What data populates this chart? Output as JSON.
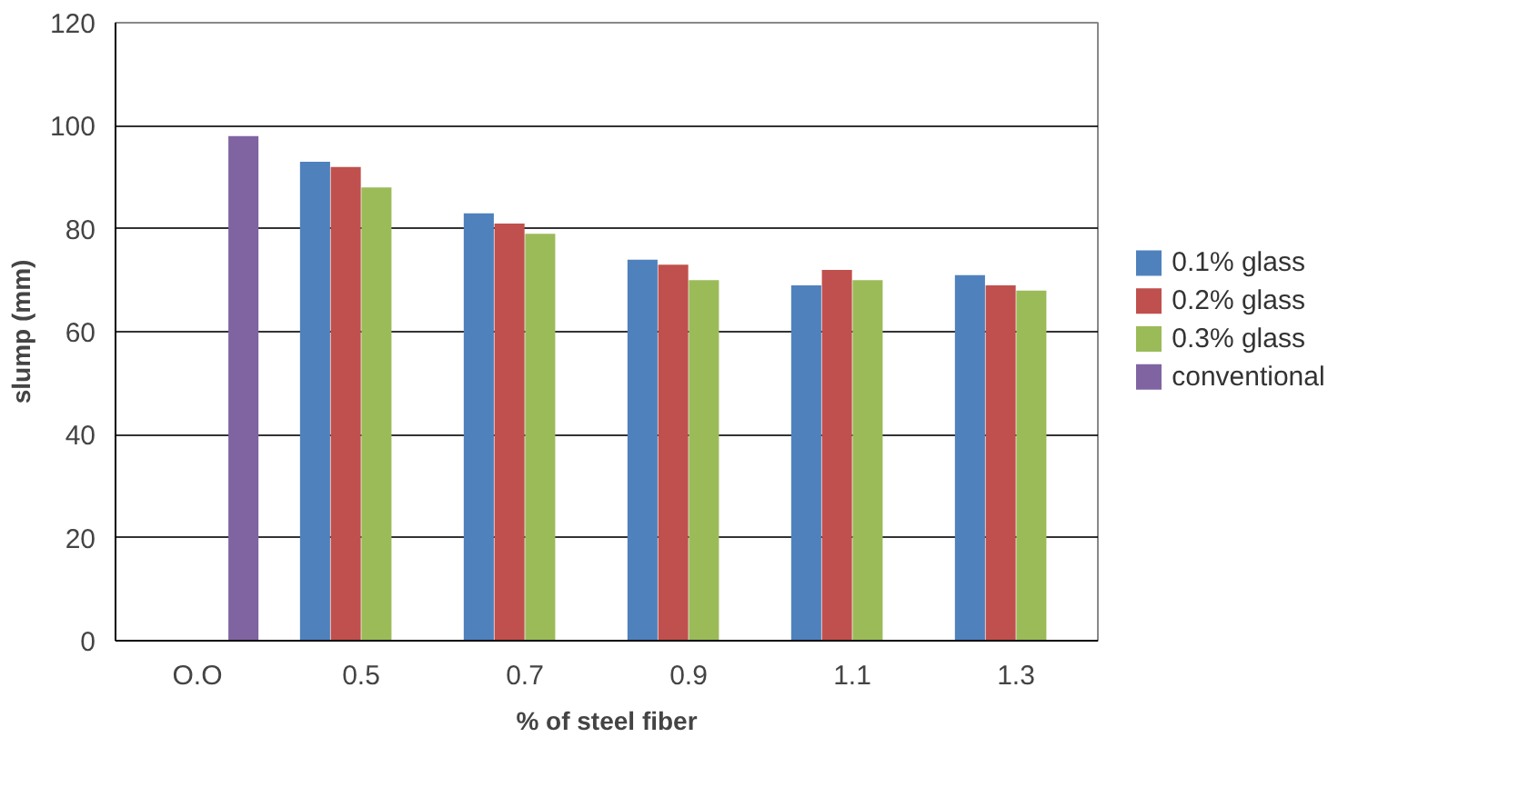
{
  "chart_data": {
    "type": "bar",
    "xlabel": "% of steel fiber",
    "ylabel": "slump (mm)",
    "categories": [
      "O.O",
      "0.5",
      "0.7",
      "0.9",
      "1.1",
      "1.3"
    ],
    "series": [
      {
        "name": "0.1% glass",
        "color": "#4f81bd",
        "values": [
          null,
          93,
          83,
          74,
          69,
          71
        ]
      },
      {
        "name": "0.2% glass",
        "color": "#c0504d",
        "values": [
          null,
          92,
          81,
          73,
          72,
          69
        ]
      },
      {
        "name": "0.3% glass",
        "color": "#9bbb59",
        "values": [
          null,
          88,
          79,
          70,
          70,
          68
        ]
      },
      {
        "name": "conventional",
        "color": "#8064a2",
        "values": [
          98,
          null,
          null,
          null,
          null,
          null
        ]
      }
    ],
    "ylim": [
      0,
      120
    ],
    "yticks": [
      0,
      20,
      40,
      60,
      80,
      100,
      120
    ],
    "grid": "y",
    "legend": "right"
  }
}
